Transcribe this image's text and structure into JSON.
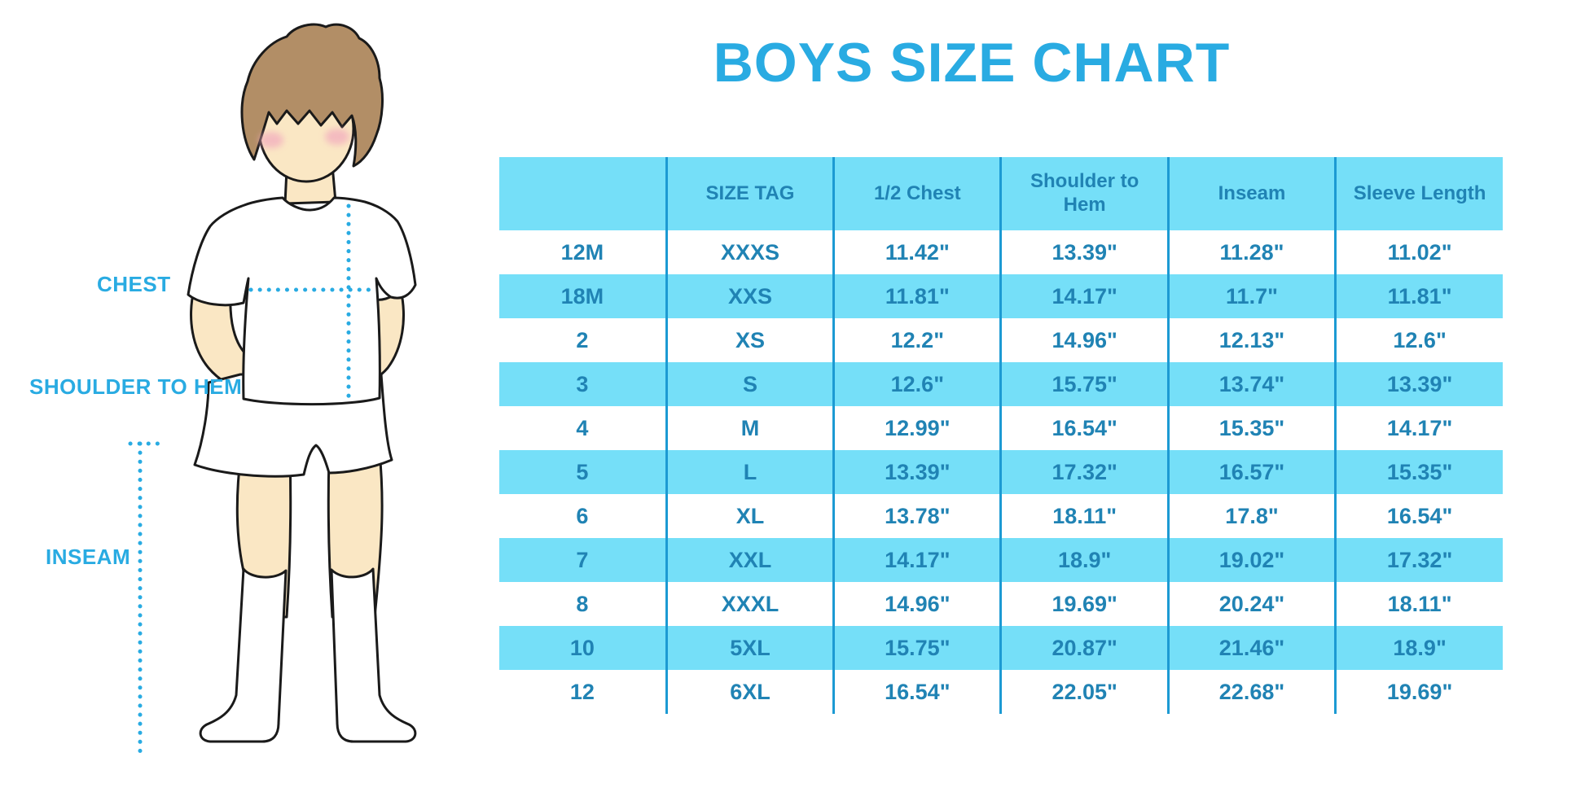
{
  "title": "BOYS SIZE CHART",
  "colors": {
    "title_blue": "#29ABE2",
    "band": "#75DFF8",
    "grid": "#1C9AD3",
    "cell_text": "#2083B4",
    "label_blue": "#29ABE2",
    "dotted": "#29ABE2",
    "skin": "#FAE7C4",
    "hair": "#B28E66",
    "cheek": "#F2A9BE",
    "outline": "#1A1A1A"
  },
  "figure": {
    "labels": {
      "chest": "CHEST",
      "shoulder_to_hem": "SHOULDER TO HEM",
      "inseam": "INSEAM"
    }
  },
  "chart_data": {
    "type": "table",
    "title": "BOYS SIZE CHART",
    "columns": [
      "",
      "SIZE TAG",
      "1/2 Chest",
      "Shoulder to Hem",
      "Inseam",
      "Sleeve Length"
    ],
    "rows": [
      [
        "12M",
        "XXXS",
        "11.42\"",
        "13.39\"",
        "11.28\"",
        "11.02\""
      ],
      [
        "18M",
        "XXS",
        "11.81\"",
        "14.17\"",
        "11.7\"",
        "11.81\""
      ],
      [
        "2",
        "XS",
        "12.2\"",
        "14.96\"",
        "12.13\"",
        "12.6\""
      ],
      [
        "3",
        "S",
        "12.6\"",
        "15.75\"",
        "13.74\"",
        "13.39\""
      ],
      [
        "4",
        "M",
        "12.99\"",
        "16.54\"",
        "15.35\"",
        "14.17\""
      ],
      [
        "5",
        "L",
        "13.39\"",
        "17.32\"",
        "16.57\"",
        "15.35\""
      ],
      [
        "6",
        "XL",
        "13.78\"",
        "18.11\"",
        "17.8\"",
        "16.54\""
      ],
      [
        "7",
        "XXL",
        "14.17\"",
        "18.9\"",
        "19.02\"",
        "17.32\""
      ],
      [
        "8",
        "XXXL",
        "14.96\"",
        "19.69\"",
        "20.24\"",
        "18.11\""
      ],
      [
        "10",
        "5XL",
        "15.75\"",
        "20.87\"",
        "21.46\"",
        "18.9\""
      ],
      [
        "12",
        "6XL",
        "16.54\"",
        "22.05\"",
        "22.68\"",
        "19.69\""
      ]
    ]
  }
}
